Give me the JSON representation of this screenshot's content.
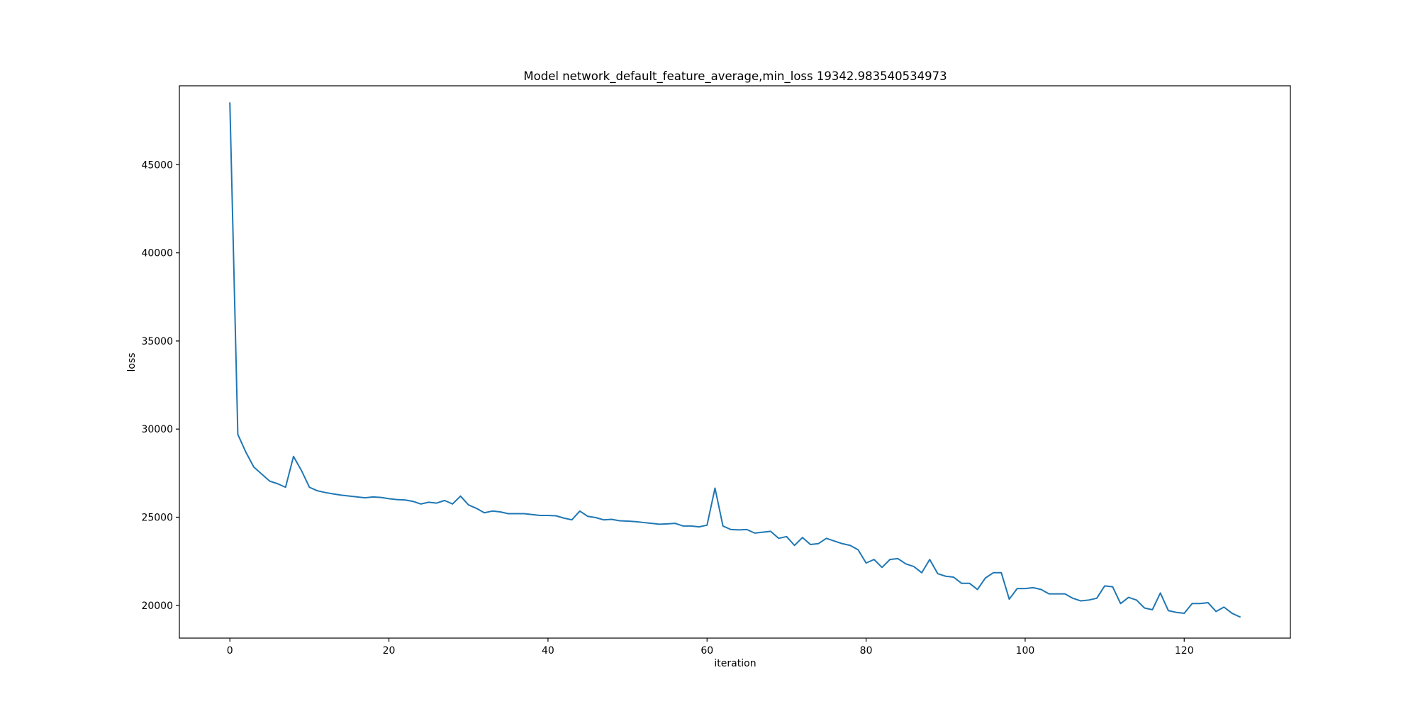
{
  "chart_data": {
    "type": "line",
    "title": "Model network_default_feature_average,min_loss 19342.983540534973",
    "xlabel": "iteration",
    "ylabel": "loss",
    "xlim": [
      -6.35,
      133.35
    ],
    "ylim": [
      18140,
      49480
    ],
    "xticks": [
      0,
      20,
      40,
      60,
      80,
      100,
      120
    ],
    "yticks": [
      20000,
      25000,
      30000,
      35000,
      40000,
      45000
    ],
    "grid": false,
    "legend": "none",
    "line_color": "#1f77b4",
    "series": [
      {
        "values": [
          48500,
          29700,
          28700,
          27850,
          27450,
          27050,
          26900,
          26700,
          28450,
          27650,
          26700,
          26500,
          26400,
          26320,
          26250,
          26200,
          26150,
          26100,
          26150,
          26120,
          26050,
          26000,
          25980,
          25900,
          25750,
          25850,
          25800,
          25950,
          25750,
          26200,
          25700,
          25500,
          25250,
          25350,
          25300,
          25200,
          25200,
          25200,
          25150,
          25100,
          25100,
          25080,
          24950,
          24850,
          25350,
          25050,
          24980,
          24850,
          24880,
          24800,
          24780,
          24750,
          24700,
          24650,
          24600,
          24620,
          24650,
          24500,
          24500,
          24450,
          24550,
          26650,
          24500,
          24300,
          24280,
          24300,
          24100,
          24150,
          24200,
          23800,
          23900,
          23400,
          23850,
          23450,
          23500,
          23800,
          23650,
          23500,
          23400,
          23150,
          22400,
          22600,
          22150,
          22600,
          22650,
          22350,
          22200,
          21850,
          22600,
          21800,
          21650,
          21600,
          21250,
          21250,
          20900,
          21550,
          21850,
          21850,
          20350,
          20950,
          20950,
          21000,
          20900,
          20650,
          20650,
          20650,
          20400,
          20250,
          20300,
          20400,
          21100,
          21050,
          20100,
          20450,
          20300,
          19850,
          19750,
          20700,
          19700,
          19600,
          19550,
          20100,
          20100,
          20150,
          19650,
          19900,
          19550,
          19343
        ]
      }
    ]
  }
}
